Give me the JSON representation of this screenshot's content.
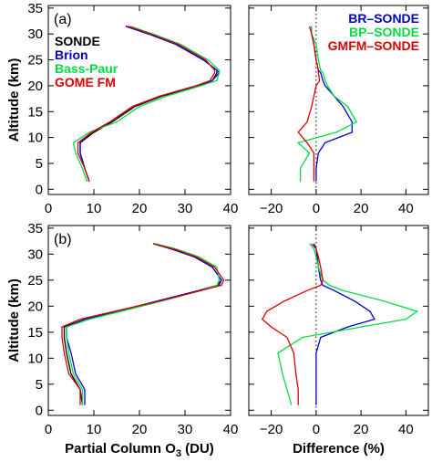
{
  "chart_data": [
    {
      "type": "line",
      "panel_label": "(a)",
      "xlim": [
        0,
        40
      ],
      "ylim": [
        -1,
        35.5
      ],
      "xticks": [
        0,
        10,
        20,
        30,
        40
      ],
      "yticks": [
        0,
        5,
        10,
        15,
        20,
        25,
        30,
        35
      ],
      "xlabel": "",
      "ylabel": "Altitude (km)",
      "legend_position": "top-left",
      "series": [
        {
          "name": "SONDE",
          "color": "#000000",
          "x": [
            17,
            22,
            28,
            34,
            37,
            37,
            36,
            33,
            25,
            19,
            14,
            10,
            7,
            7,
            8,
            9
          ],
          "y": [
            31.5,
            30,
            28,
            25,
            23,
            22.5,
            21,
            20,
            18,
            16,
            13,
            11,
            9,
            7,
            4,
            1.5
          ]
        },
        {
          "name": "Brion",
          "color": "#0000cc",
          "x": [
            17,
            22,
            28,
            34,
            37,
            37.5,
            36,
            32.5,
            24.5,
            18.5,
            13.5,
            9.5,
            7,
            7,
            8,
            9
          ],
          "y": [
            31.5,
            30,
            28,
            25,
            23,
            22.5,
            21,
            20,
            18,
            16,
            13,
            11,
            9,
            7,
            4,
            1.5
          ]
        },
        {
          "name": "Bass-Paur",
          "color": "#00dd44",
          "x": [
            18,
            23,
            29,
            35,
            37.5,
            37.5,
            37,
            33.5,
            26,
            20,
            15,
            9,
            5.5,
            6,
            7.5,
            8.5
          ],
          "y": [
            31.5,
            30,
            28,
            25,
            23,
            22.5,
            21,
            20,
            18,
            16,
            13,
            11,
            9,
            7,
            4,
            1.5
          ]
        },
        {
          "name": "GOME FM",
          "color": "#dd0000",
          "x": [
            17.5,
            22.5,
            28.5,
            34.5,
            36.5,
            36.5,
            35.5,
            32.5,
            24.5,
            18.5,
            13.5,
            9.5,
            6.5,
            6.5,
            8,
            9
          ],
          "y": [
            31.5,
            30,
            28,
            25,
            23,
            22.5,
            21,
            20,
            18,
            16,
            13,
            11,
            9,
            7,
            4,
            1.5
          ]
        }
      ]
    },
    {
      "type": "line",
      "panel_label": "",
      "xlim": [
        -30,
        50
      ],
      "ylim": [
        -1,
        35.5
      ],
      "xticks": [
        -20,
        0,
        20,
        40
      ],
      "yticks": [
        0,
        5,
        10,
        15,
        20,
        25,
        30,
        35
      ],
      "xlabel": "",
      "ylabel": "",
      "zero_line": "dotted vertical at x=0",
      "legend_position": "top-right",
      "series": [
        {
          "name": "BR–SONDE",
          "color": "#0000cc",
          "x": [
            -2,
            -2,
            -1,
            0,
            1,
            2,
            3,
            4,
            8,
            12,
            16,
            16,
            4,
            1,
            0,
            0
          ],
          "y": [
            31.5,
            30,
            28,
            25,
            23,
            22.5,
            21,
            20,
            18,
            16,
            13,
            11,
            9,
            7,
            4,
            1.5
          ]
        },
        {
          "name": "BP–SONDE",
          "color": "#00dd44",
          "x": [
            -2,
            -2,
            0,
            1,
            2,
            3,
            4,
            5,
            8,
            14,
            18,
            9,
            -8,
            -3,
            -7,
            -7
          ],
          "y": [
            31.5,
            30,
            28,
            25,
            23,
            22.5,
            21,
            20,
            18,
            16,
            13,
            11,
            9,
            7,
            4,
            1.5
          ]
        },
        {
          "name": "GMFM–SONDE",
          "color": "#dd0000",
          "x": [
            -3,
            -2,
            -1,
            0,
            1,
            1,
            1.5,
            0,
            -1,
            -2,
            -4,
            -8,
            -4,
            -1,
            -1,
            -1
          ],
          "y": [
            31.5,
            30,
            28,
            25,
            23,
            22.5,
            21,
            20,
            18,
            16,
            13,
            11,
            9,
            7,
            4,
            1.5
          ]
        }
      ]
    },
    {
      "type": "line",
      "panel_label": "(b)",
      "xlim": [
        0,
        40
      ],
      "ylim": [
        -1,
        35.5
      ],
      "xticks": [
        0,
        10,
        20,
        30,
        40
      ],
      "yticks": [
        0,
        5,
        10,
        15,
        20,
        25,
        30,
        35
      ],
      "xlabel": "Partial Column O",
      "xlabel_sub": "3",
      "xlabel_unit": " (DU)",
      "ylabel": "Altitude (km)",
      "series": [
        {
          "name": "SONDE",
          "color": "#000000",
          "x": [
            23,
            27,
            32,
            36,
            38,
            37,
            33,
            24,
            15,
            8,
            3.5,
            3.5,
            4,
            5,
            7,
            7.5
          ],
          "y": [
            32,
            31,
            29.5,
            27.5,
            25,
            24,
            23,
            21,
            19,
            17.5,
            16,
            14,
            11,
            7,
            4,
            1
          ]
        },
        {
          "name": "Brion",
          "color": "#0000cc",
          "x": [
            23,
            27,
            32,
            36,
            38,
            37.5,
            33,
            24,
            15,
            8,
            4,
            4,
            5,
            6,
            8,
            8
          ]
        },
        {
          "name": "Bass-Paur",
          "color": "#00dd44",
          "x": [
            23.5,
            28,
            33,
            37,
            37.5,
            37,
            33.5,
            25,
            16,
            9,
            4,
            4,
            4.5,
            5.5,
            7.5,
            7.5
          ]
        },
        {
          "name": "GOME FM",
          "color": "#dd0000",
          "x": [
            23,
            27.5,
            32.5,
            36.5,
            38.5,
            38,
            33.5,
            24.5,
            14.5,
            7,
            3,
            3,
            3.5,
            4.5,
            7,
            7
          ]
        }
      ],
      "y_common": [
        32,
        31,
        29.5,
        27.5,
        25,
        24,
        23,
        21,
        19,
        17.5,
        16,
        14,
        11,
        7,
        4,
        1
      ]
    },
    {
      "type": "line",
      "panel_label": "",
      "xlim": [
        -30,
        50
      ],
      "ylim": [
        -1,
        35.5
      ],
      "xticks": [
        -20,
        0,
        20,
        40
      ],
      "yticks": [
        0,
        5,
        10,
        15,
        20,
        25,
        30,
        35
      ],
      "xlabel": "Difference (%)",
      "ylabel": "",
      "zero_line": "dotted vertical at x=0",
      "series": [
        {
          "name": "BR–SONDE",
          "color": "#0000cc",
          "x": [
            -1,
            0,
            0.5,
            1,
            2,
            3,
            8,
            17,
            24,
            26,
            14,
            2,
            0,
            0,
            0,
            0
          ]
        },
        {
          "name": "BP–SONDE",
          "color": "#00dd44",
          "x": [
            -3,
            -1,
            0,
            1,
            3,
            6,
            12,
            30,
            45,
            40,
            20,
            -6,
            -17,
            -15,
            -13,
            -11
          ]
        },
        {
          "name": "GMFM–SONDE",
          "color": "#dd0000",
          "x": [
            -2,
            0,
            1,
            2,
            3,
            2,
            -4,
            -14,
            -22,
            -24,
            -20,
            -13,
            -10,
            -9,
            -8,
            -8
          ]
        }
      ],
      "y_common": [
        32,
        31,
        29.5,
        27.5,
        25,
        24,
        23,
        21,
        19,
        17.5,
        16,
        14,
        11,
        7,
        4,
        1
      ]
    }
  ]
}
